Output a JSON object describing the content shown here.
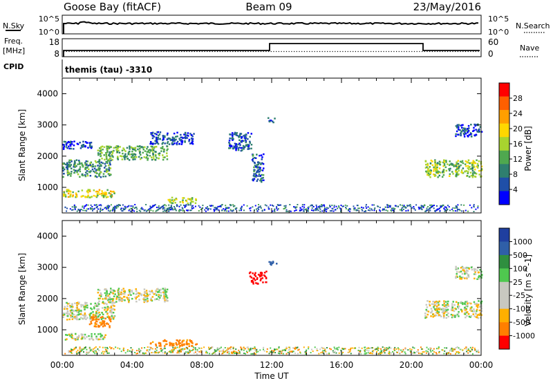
{
  "header": {
    "station": "Goose Bay (fitACF)",
    "beam": "Beam 09",
    "date": "23/May/2016"
  },
  "noise_panel": {
    "left_label": "N.Sky",
    "right_label": "N.Search",
    "left_ticks": [
      "10^5",
      "10^0"
    ],
    "right_ticks": [
      "10^5",
      "10^0"
    ]
  },
  "freq_panel": {
    "left_label_line1": "Freq.",
    "left_label_line2": "[MHz]",
    "right_label": "Nave",
    "left_ticks": [
      "18",
      "8"
    ],
    "right_ticks": [
      "60",
      "0"
    ]
  },
  "cpid": {
    "label": "CPID",
    "value": "themis (tau) -3310"
  },
  "colors": {
    "power": [
      "#0000ff",
      "#1f4fa8",
      "#2f7f6f",
      "#4fa84f",
      "#a8d42f",
      "#ffd700",
      "#ff9f00",
      "#ff5f00",
      "#ff0000"
    ],
    "velocity": [
      "#ff0000",
      "#ff7f00",
      "#ffaf00",
      "#c8c8c0",
      "#c8c8c0",
      "#4fc84f",
      "#2f8f3f",
      "#2f5fa8",
      "#1f3f9f"
    ]
  },
  "chart_data": [
    {
      "type": "heatmap",
      "title": "",
      "xlabel": "",
      "ylabel": "Slant Range [km]",
      "xlim": [
        "00:00",
        "00:00"
      ],
      "ylim": [
        180,
        4500
      ],
      "y_ticks": [
        "1000",
        "2000",
        "3000",
        "4000"
      ],
      "colorbar": {
        "label": "Power [dB]",
        "range": [
          0,
          32
        ],
        "ticks": [
          "4",
          "8",
          "12",
          "16",
          "20",
          "24",
          "28"
        ]
      },
      "echo_regions": [
        {
          "t_start": "00:00",
          "t_end": "02:45",
          "range_km": [
            1350,
            1900
          ],
          "power_db": 12
        },
        {
          "t_start": "00:00",
          "t_end": "03:00",
          "range_km": [
            700,
            950
          ],
          "power_db": 20
        },
        {
          "t_start": "00:00",
          "t_end": "01:40",
          "range_km": [
            2250,
            2500
          ],
          "power_db": 6
        },
        {
          "t_start": "02:00",
          "t_end": "06:00",
          "range_km": [
            1900,
            2350
          ],
          "power_db": 14
        },
        {
          "t_start": "05:00",
          "t_end": "07:30",
          "range_km": [
            2400,
            2800
          ],
          "power_db": 6
        },
        {
          "t_start": "06:00",
          "t_end": "07:40",
          "range_km": [
            500,
            700
          ],
          "power_db": 18
        },
        {
          "t_start": "09:30",
          "t_end": "10:50",
          "range_km": [
            2200,
            2800
          ],
          "power_db": 6
        },
        {
          "t_start": "10:50",
          "t_end": "11:30",
          "range_km": [
            1200,
            2100
          ],
          "power_db": 8
        },
        {
          "t_start": "11:45",
          "t_end": "12:15",
          "range_km": [
            3100,
            3250
          ],
          "power_db": 6
        },
        {
          "t_start": "20:45",
          "t_end": "24:00",
          "range_km": [
            1350,
            1900
          ],
          "power_db": 16
        },
        {
          "t_start": "22:30",
          "t_end": "24:00",
          "range_km": [
            2650,
            3050
          ],
          "power_db": 6
        }
      ]
    },
    {
      "type": "heatmap",
      "title": "",
      "xlabel": "Time UT",
      "ylabel": "Slant Range [km]",
      "xlim": [
        "00:00",
        "00:00"
      ],
      "ylim": [
        180,
        4500
      ],
      "y_ticks": [
        "1000",
        "2000",
        "3000",
        "4000"
      ],
      "x_ticks": [
        "00:00",
        "04:00",
        "08:00",
        "12:00",
        "16:00",
        "20:00",
        "00:00"
      ],
      "colorbar": {
        "label": "Velocity [m s^-1]",
        "levels": [
          "1000",
          "500",
          "100",
          "25",
          "-25",
          "-100",
          "-500",
          "-1000"
        ]
      },
      "echo_regions": [
        {
          "t_start": "00:00",
          "t_end": "03:00",
          "range_km": [
            1350,
            1900
          ],
          "velocity_ms": 0
        },
        {
          "t_start": "01:30",
          "t_end": "02:45",
          "range_km": [
            1100,
            1450
          ],
          "velocity_ms": -150
        },
        {
          "t_start": "00:00",
          "t_end": "02:30",
          "range_km": [
            700,
            900
          ],
          "velocity_ms": 0
        },
        {
          "t_start": "02:00",
          "t_end": "06:00",
          "range_km": [
            1900,
            2350
          ],
          "velocity_ms": 0
        },
        {
          "t_start": "05:00",
          "t_end": "07:40",
          "range_km": [
            500,
            700
          ],
          "velocity_ms": -150
        },
        {
          "t_start": "10:40",
          "t_end": "11:40",
          "range_km": [
            2500,
            2900
          ],
          "velocity_ms": -600
        },
        {
          "t_start": "11:45",
          "t_end": "12:15",
          "range_km": [
            3100,
            3250
          ],
          "velocity_ms": 600
        },
        {
          "t_start": "20:45",
          "t_end": "24:00",
          "range_km": [
            1400,
            1950
          ],
          "velocity_ms": 0
        },
        {
          "t_start": "22:30",
          "t_end": "24:00",
          "range_km": [
            2650,
            3050
          ],
          "velocity_ms": 0
        }
      ]
    }
  ]
}
